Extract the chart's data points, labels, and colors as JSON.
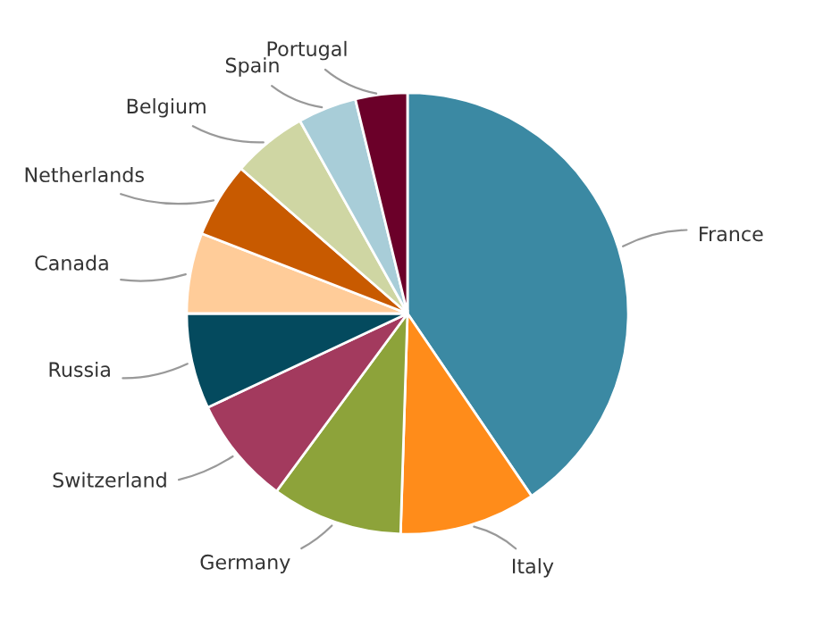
{
  "chart_data": {
    "type": "pie",
    "categories": [
      "France",
      "Italy",
      "Germany",
      "Switzerland",
      "Russia",
      "Canada",
      "Netherlands",
      "Belgium",
      "Spain",
      "Portugal"
    ],
    "values": [
      40.5,
      10,
      9.6,
      7.9,
      7,
      5.9,
      5.5,
      5.5,
      4.3,
      3.8
    ],
    "colors": [
      "#3b89a3",
      "#ff8c1a",
      "#8da33a",
      "#a33a5e",
      "#044a5e",
      "#ffcc99",
      "#c85a00",
      "#cfd6a3",
      "#a8cdd8",
      "#6b0029"
    ]
  }
}
